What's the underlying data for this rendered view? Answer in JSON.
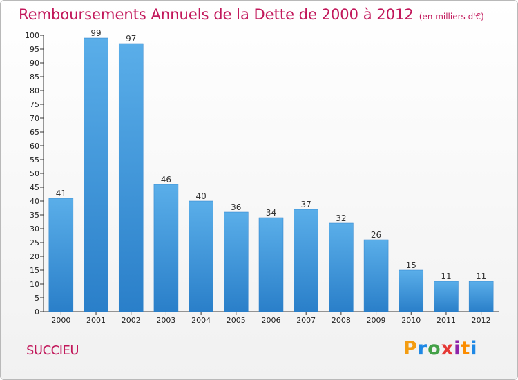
{
  "chart_data": {
    "type": "bar",
    "title": "Remboursements Annuels de la Dette de 2000 à 2012",
    "subtitle": "(en milliers d'€)",
    "categories": [
      "2000",
      "2001",
      "2002",
      "2003",
      "2004",
      "2005",
      "2006",
      "2007",
      "2008",
      "2009",
      "2010",
      "2011",
      "2012"
    ],
    "values": [
      41,
      99,
      97,
      46,
      40,
      36,
      34,
      37,
      32,
      26,
      15,
      11,
      11
    ],
    "ylim": [
      0,
      100
    ],
    "yticks": [
      0,
      5,
      10,
      15,
      20,
      25,
      30,
      35,
      40,
      45,
      50,
      55,
      60,
      65,
      70,
      75,
      80,
      85,
      90,
      95,
      100
    ],
    "grid": false,
    "bar_color": "#3a8fd8",
    "data_labels": true
  },
  "footer": {
    "commune": "SUCCIEU",
    "logo": "Proxiti"
  },
  "colors": {
    "title": "#c2185b",
    "axis": "#333333"
  }
}
